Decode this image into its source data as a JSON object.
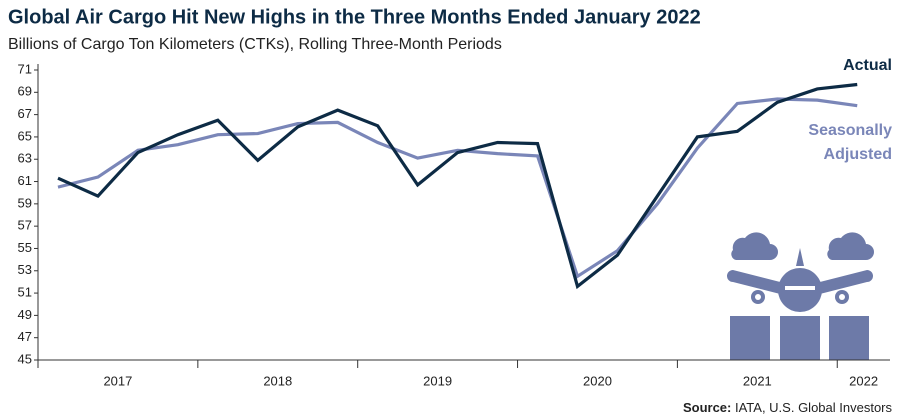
{
  "chart_data": {
    "type": "line",
    "title": "Global Air Cargo Hit New Highs in the Three Months Ended January 2022",
    "subtitle": "Billions of Cargo Ton Kilometers (CTKs), Rolling Three-Month Periods",
    "source_label": "Source:",
    "source": "IATA, U.S. Global Investors",
    "x": [
      2017.125,
      2017.375,
      2017.625,
      2017.875,
      2018.125,
      2018.375,
      2018.625,
      2018.875,
      2019.125,
      2019.375,
      2019.625,
      2019.875,
      2020.125,
      2020.375,
      2020.625,
      2020.875,
      2021.125,
      2021.375,
      2021.625,
      2021.875,
      2022.125
    ],
    "series": [
      {
        "name": "Actual",
        "color": "#0d2b45",
        "values": [
          61.3,
          59.7,
          63.6,
          65.2,
          66.5,
          62.9,
          65.9,
          67.4,
          66.0,
          60.7,
          63.6,
          64.5,
          64.4,
          51.6,
          54.4,
          59.7,
          65.0,
          65.5,
          68.1,
          69.3,
          69.7
        ]
      },
      {
        "name": "Seasonally Adjusted",
        "color": "#7a86b8",
        "values": [
          60.5,
          61.4,
          63.8,
          64.3,
          65.2,
          65.3,
          66.2,
          66.3,
          64.5,
          63.1,
          63.8,
          63.5,
          63.3,
          52.5,
          54.8,
          59.0,
          64.0,
          68.0,
          68.4,
          68.3,
          67.8
        ]
      }
    ],
    "xlim": [
      2017,
      2022.33
    ],
    "xticks": [
      2017,
      2018,
      2019,
      2020,
      2021,
      2022
    ],
    "ylim": [
      45,
      71
    ],
    "yticks": [
      45,
      47,
      49,
      51,
      53,
      55,
      57,
      59,
      61,
      63,
      65,
      67,
      69,
      71
    ]
  }
}
